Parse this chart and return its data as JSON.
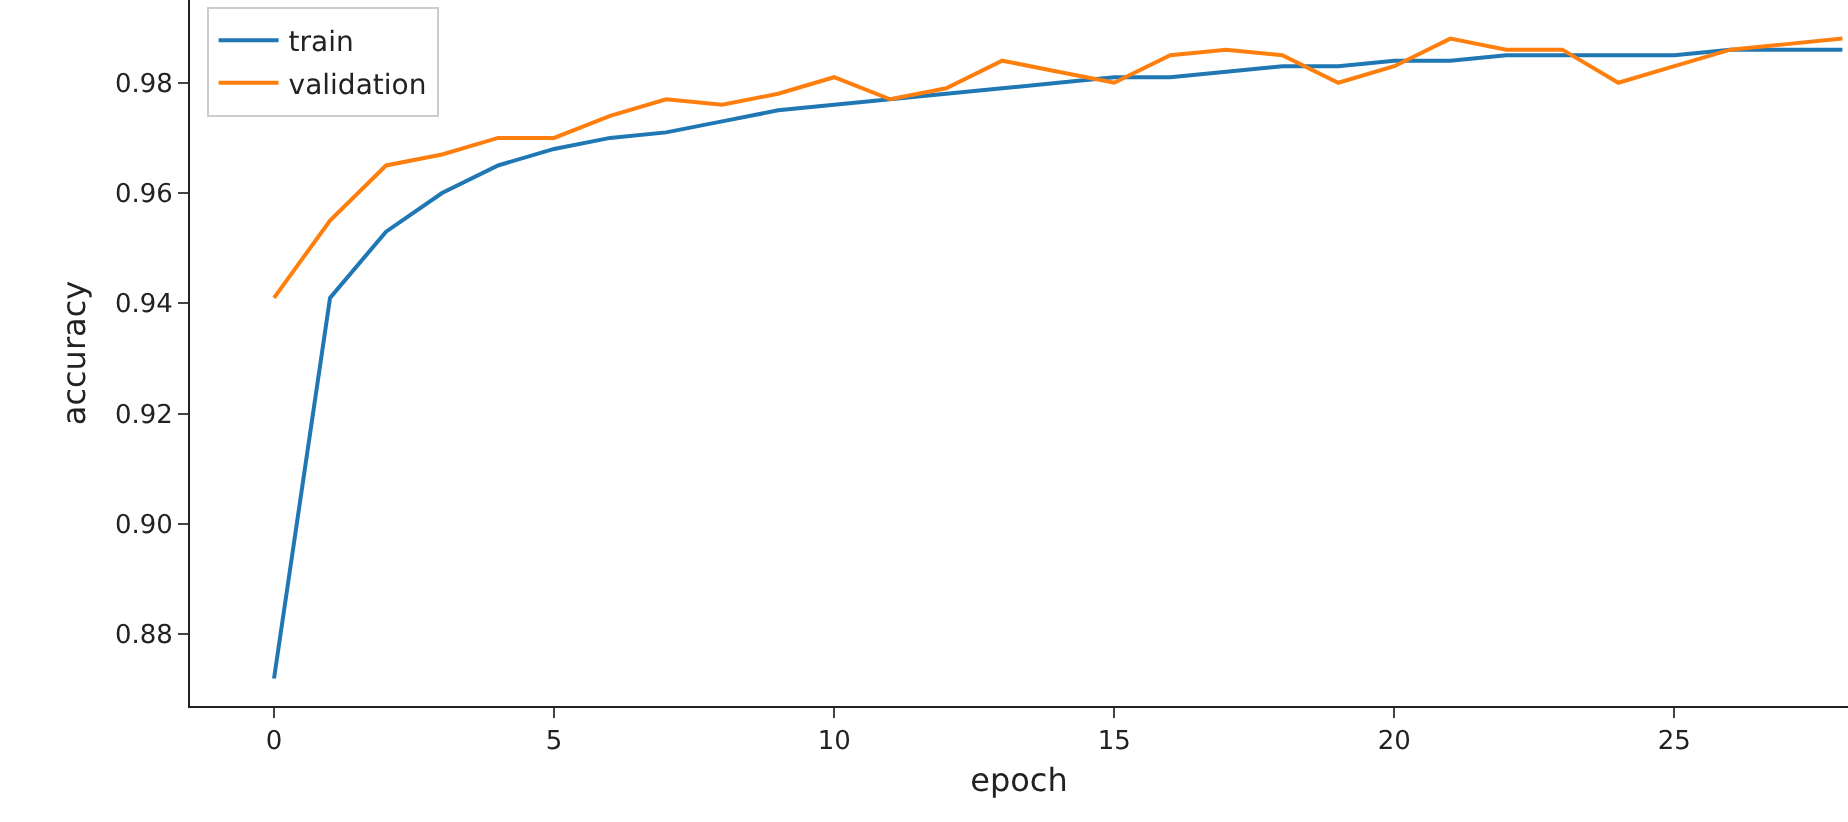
{
  "chart_data": {
    "type": "line",
    "xlabel": "epoch",
    "ylabel": "accuracy",
    "x": [
      0,
      1,
      2,
      3,
      4,
      5,
      6,
      7,
      8,
      9,
      10,
      11,
      12,
      13,
      14,
      15,
      16,
      17,
      18,
      19,
      20,
      21,
      22,
      23,
      24,
      25,
      26,
      27,
      28
    ],
    "series": [
      {
        "name": "train",
        "color": "#1f77b4",
        "values": [
          0.872,
          0.941,
          0.953,
          0.96,
          0.965,
          0.968,
          0.97,
          0.971,
          0.973,
          0.975,
          0.976,
          0.977,
          0.978,
          0.979,
          0.98,
          0.981,
          0.981,
          0.982,
          0.983,
          0.983,
          0.984,
          0.984,
          0.985,
          0.985,
          0.985,
          0.985,
          0.986,
          0.986,
          0.986
        ]
      },
      {
        "name": "validation",
        "color": "#ff7f0e",
        "values": [
          0.941,
          0.955,
          0.965,
          0.967,
          0.97,
          0.97,
          0.974,
          0.977,
          0.976,
          0.978,
          0.981,
          0.977,
          0.979,
          0.984,
          0.982,
          0.98,
          0.985,
          0.986,
          0.985,
          0.98,
          0.983,
          0.988,
          0.986,
          0.986,
          0.98,
          0.983,
          0.986,
          0.987,
          0.988
        ]
      }
    ],
    "xlim": [
      -1.5,
      28.1
    ],
    "ylim": [
      0.867,
      0.995
    ],
    "xticks": [
      0,
      5,
      10,
      15,
      20,
      25
    ],
    "yticks": [
      0.88,
      {
        "value": 0.9,
        "label": "0.90"
      },
      0.92,
      0.94,
      0.96,
      0.98
    ],
    "grid": false,
    "legend": "top left",
    "marker": "none",
    "line_style": "solid"
  }
}
